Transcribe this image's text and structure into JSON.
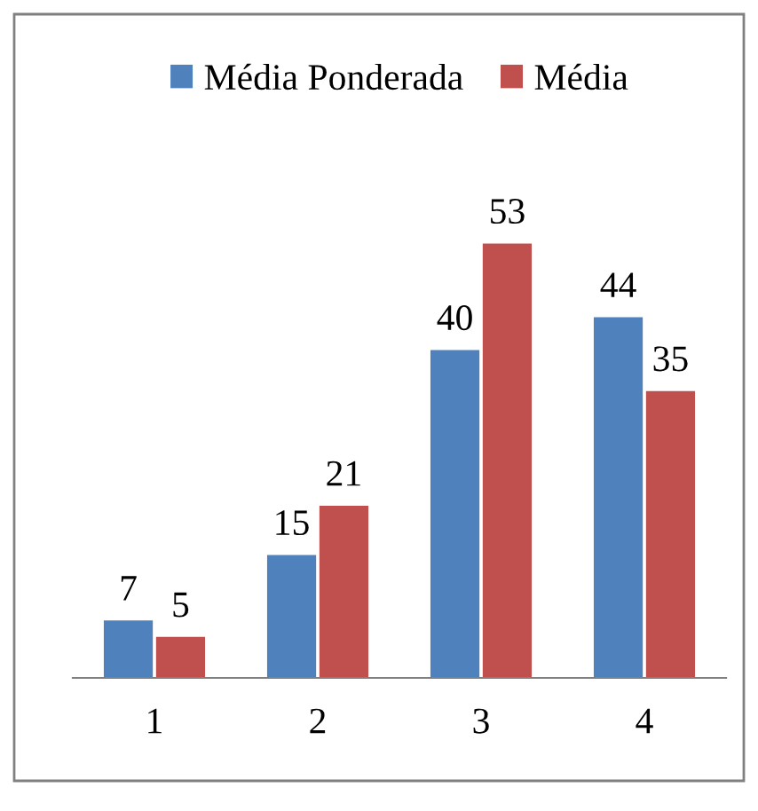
{
  "chart_data": {
    "type": "bar",
    "categories": [
      "1",
      "2",
      "3",
      "4"
    ],
    "series": [
      {
        "name": "Média Ponderada",
        "color": "#4f81bd",
        "values": [
          7,
          15,
          40,
          44
        ]
      },
      {
        "name": "Média",
        "color": "#c0504d",
        "values": [
          5,
          21,
          53,
          35
        ]
      }
    ],
    "data_labels": true,
    "legend": "top",
    "grid": false
  }
}
